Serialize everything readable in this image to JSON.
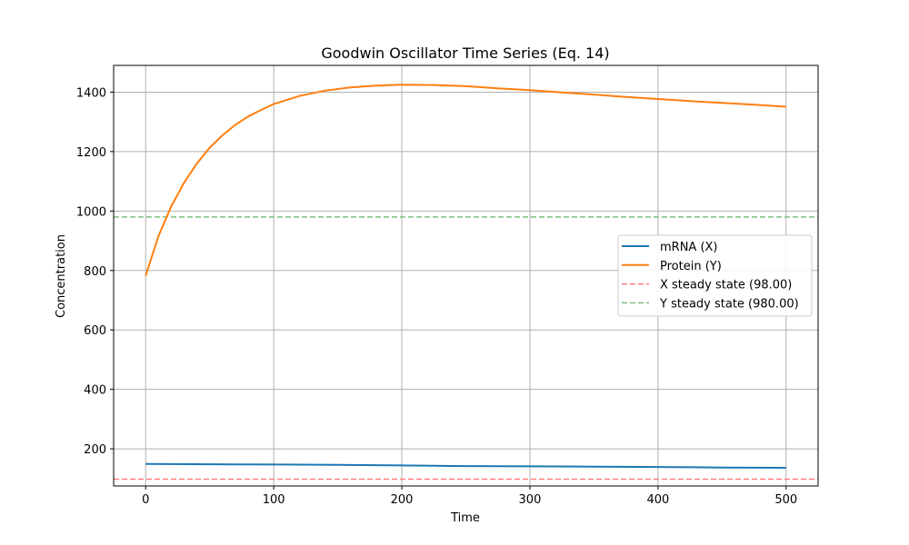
{
  "chart_data": {
    "type": "line",
    "title": "Goodwin Oscillator Time Series (Eq. 14)",
    "xlabel": "Time",
    "ylabel": "Concentration",
    "xlim": [
      -25,
      525
    ],
    "ylim": [
      75,
      1490
    ],
    "xticks": [
      0,
      100,
      200,
      300,
      400,
      500
    ],
    "yticks": [
      200,
      400,
      600,
      800,
      1000,
      1200,
      1400
    ],
    "grid": true,
    "legend_position": "center-right",
    "series": [
      {
        "name": "mRNA (X)",
        "color": "#1f77b4",
        "style": "solid",
        "x": [
          0,
          50,
          100,
          150,
          200,
          250,
          300,
          350,
          400,
          450,
          500
        ],
        "values": [
          149,
          148,
          147,
          146,
          144,
          142,
          141,
          140,
          139,
          137,
          136
        ]
      },
      {
        "name": "Protein (Y)",
        "color": "#ff7f0e",
        "style": "solid",
        "x": [
          0,
          10,
          20,
          30,
          40,
          50,
          60,
          70,
          80,
          90,
          100,
          120,
          140,
          160,
          180,
          200,
          225,
          250,
          275,
          300,
          325,
          350,
          375,
          400,
          425,
          450,
          475,
          500
        ],
        "values": [
          782,
          915,
          1016,
          1095,
          1160,
          1213,
          1255,
          1290,
          1318,
          1340,
          1360,
          1387,
          1405,
          1416,
          1422,
          1425,
          1424,
          1420,
          1413,
          1407,
          1399,
          1392,
          1384,
          1377,
          1370,
          1364,
          1358,
          1351
        ]
      },
      {
        "name": "X steady state (98.00)",
        "color": "#ff7f7f",
        "style": "dashed",
        "hline": 98
      },
      {
        "name": "Y steady state (980.00)",
        "color": "#7fbf7f",
        "style": "dashed",
        "hline": 980
      }
    ]
  }
}
